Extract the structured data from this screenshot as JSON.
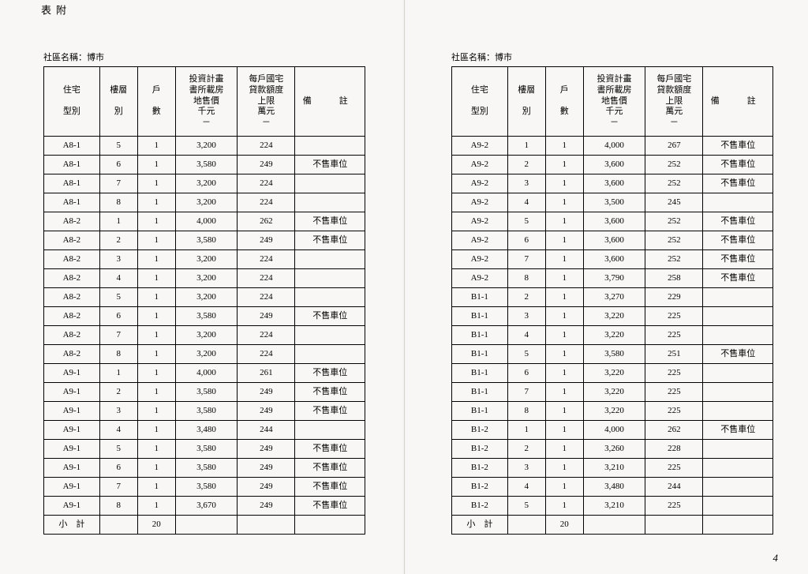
{
  "labels": {
    "attach1": "附",
    "attach2": "表",
    "community_prefix": "社區名稱：",
    "community_name": "博市",
    "subtotal": "小　計",
    "hdr_type": "住宅\n\n型別",
    "hdr_floor": "樓層\n\n別",
    "hdr_units": "戶\n\n數",
    "hdr_price": "投資計畫\n書所載房\n地售價\n千元\n－",
    "hdr_loan": "每戶國宅\n貸款額度\n上限\n萬元\n－",
    "hdr_remark": "備　註",
    "page_num": "4"
  },
  "left_rows": [
    {
      "type": "A8-1",
      "floor": "5",
      "units": "1",
      "price": "3,200",
      "loan": "224",
      "remark": ""
    },
    {
      "type": "A8-1",
      "floor": "6",
      "units": "1",
      "price": "3,580",
      "loan": "249",
      "remark": "不售車位"
    },
    {
      "type": "A8-1",
      "floor": "7",
      "units": "1",
      "price": "3,200",
      "loan": "224",
      "remark": ""
    },
    {
      "type": "A8-1",
      "floor": "8",
      "units": "1",
      "price": "3,200",
      "loan": "224",
      "remark": ""
    },
    {
      "type": "A8-2",
      "floor": "1",
      "units": "1",
      "price": "4,000",
      "loan": "262",
      "remark": "不售車位"
    },
    {
      "type": "A8-2",
      "floor": "2",
      "units": "1",
      "price": "3,580",
      "loan": "249",
      "remark": "不售車位"
    },
    {
      "type": "A8-2",
      "floor": "3",
      "units": "1",
      "price": "3,200",
      "loan": "224",
      "remark": ""
    },
    {
      "type": "A8-2",
      "floor": "4",
      "units": "1",
      "price": "3,200",
      "loan": "224",
      "remark": ""
    },
    {
      "type": "A8-2",
      "floor": "5",
      "units": "1",
      "price": "3,200",
      "loan": "224",
      "remark": ""
    },
    {
      "type": "A8-2",
      "floor": "6",
      "units": "1",
      "price": "3,580",
      "loan": "249",
      "remark": "不售車位"
    },
    {
      "type": "A8-2",
      "floor": "7",
      "units": "1",
      "price": "3,200",
      "loan": "224",
      "remark": ""
    },
    {
      "type": "A8-2",
      "floor": "8",
      "units": "1",
      "price": "3,200",
      "loan": "224",
      "remark": ""
    },
    {
      "type": "A9-1",
      "floor": "1",
      "units": "1",
      "price": "4,000",
      "loan": "261",
      "remark": "不售車位"
    },
    {
      "type": "A9-1",
      "floor": "2",
      "units": "1",
      "price": "3,580",
      "loan": "249",
      "remark": "不售車位"
    },
    {
      "type": "A9-1",
      "floor": "3",
      "units": "1",
      "price": "3,580",
      "loan": "249",
      "remark": "不售車位"
    },
    {
      "type": "A9-1",
      "floor": "4",
      "units": "1",
      "price": "3,480",
      "loan": "244",
      "remark": ""
    },
    {
      "type": "A9-1",
      "floor": "5",
      "units": "1",
      "price": "3,580",
      "loan": "249",
      "remark": "不售車位"
    },
    {
      "type": "A9-1",
      "floor": "6",
      "units": "1",
      "price": "3,580",
      "loan": "249",
      "remark": "不售車位"
    },
    {
      "type": "A9-1",
      "floor": "7",
      "units": "1",
      "price": "3,580",
      "loan": "249",
      "remark": "不售車位"
    },
    {
      "type": "A9-1",
      "floor": "8",
      "units": "1",
      "price": "3,670",
      "loan": "249",
      "remark": "不售車位"
    }
  ],
  "left_subtotal_units": "20",
  "right_rows": [
    {
      "type": "A9-2",
      "floor": "1",
      "units": "1",
      "price": "4,000",
      "loan": "267",
      "remark": "不售車位"
    },
    {
      "type": "A9-2",
      "floor": "2",
      "units": "1",
      "price": "3,600",
      "loan": "252",
      "remark": "不售車位"
    },
    {
      "type": "A9-2",
      "floor": "3",
      "units": "1",
      "price": "3,600",
      "loan": "252",
      "remark": "不售車位"
    },
    {
      "type": "A9-2",
      "floor": "4",
      "units": "1",
      "price": "3,500",
      "loan": "245",
      "remark": ""
    },
    {
      "type": "A9-2",
      "floor": "5",
      "units": "1",
      "price": "3,600",
      "loan": "252",
      "remark": "不售車位"
    },
    {
      "type": "A9-2",
      "floor": "6",
      "units": "1",
      "price": "3,600",
      "loan": "252",
      "remark": "不售車位"
    },
    {
      "type": "A9-2",
      "floor": "7",
      "units": "1",
      "price": "3,600",
      "loan": "252",
      "remark": "不售車位"
    },
    {
      "type": "A9-2",
      "floor": "8",
      "units": "1",
      "price": "3,790",
      "loan": "258",
      "remark": "不售車位"
    },
    {
      "type": "B1-1",
      "floor": "2",
      "units": "1",
      "price": "3,270",
      "loan": "229",
      "remark": ""
    },
    {
      "type": "B1-1",
      "floor": "3",
      "units": "1",
      "price": "3,220",
      "loan": "225",
      "remark": ""
    },
    {
      "type": "B1-1",
      "floor": "4",
      "units": "1",
      "price": "3,220",
      "loan": "225",
      "remark": ""
    },
    {
      "type": "B1-1",
      "floor": "5",
      "units": "1",
      "price": "3,580",
      "loan": "251",
      "remark": "不售車位"
    },
    {
      "type": "B1-1",
      "floor": "6",
      "units": "1",
      "price": "3,220",
      "loan": "225",
      "remark": ""
    },
    {
      "type": "B1-1",
      "floor": "7",
      "units": "1",
      "price": "3,220",
      "loan": "225",
      "remark": ""
    },
    {
      "type": "B1-1",
      "floor": "8",
      "units": "1",
      "price": "3,220",
      "loan": "225",
      "remark": ""
    },
    {
      "type": "B1-2",
      "floor": "1",
      "units": "1",
      "price": "4,000",
      "loan": "262",
      "remark": "不售車位"
    },
    {
      "type": "B1-2",
      "floor": "2",
      "units": "1",
      "price": "3,260",
      "loan": "228",
      "remark": ""
    },
    {
      "type": "B1-2",
      "floor": "3",
      "units": "1",
      "price": "3,210",
      "loan": "225",
      "remark": ""
    },
    {
      "type": "B1-2",
      "floor": "4",
      "units": "1",
      "price": "3,480",
      "loan": "244",
      "remark": ""
    },
    {
      "type": "B1-2",
      "floor": "5",
      "units": "1",
      "price": "3,210",
      "loan": "225",
      "remark": ""
    }
  ],
  "right_subtotal_units": "20"
}
